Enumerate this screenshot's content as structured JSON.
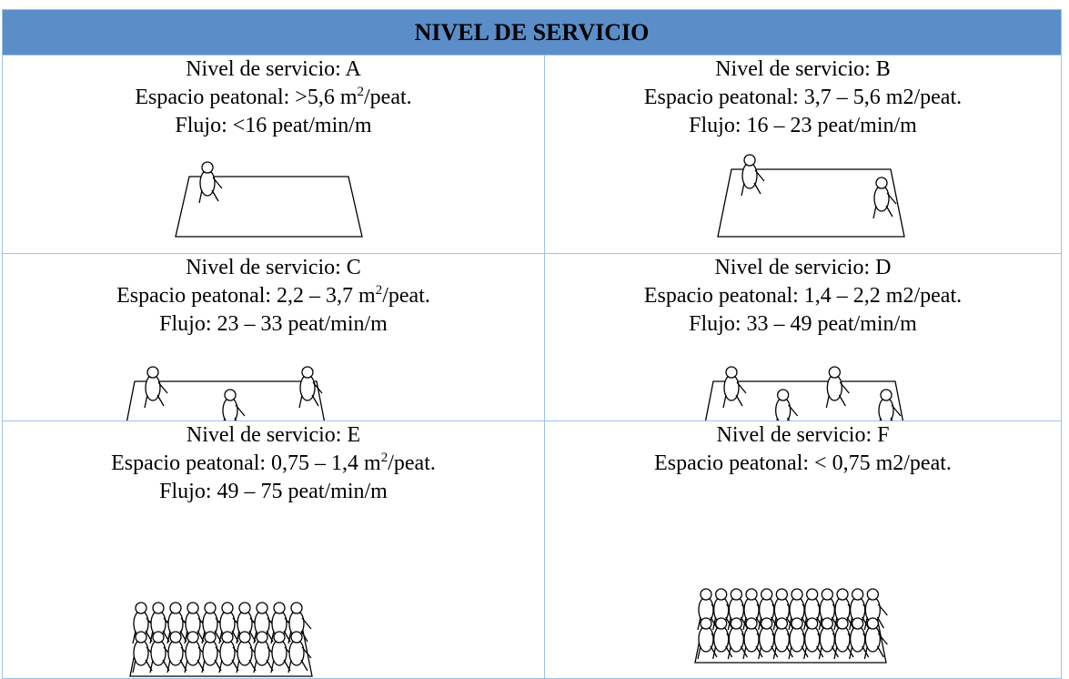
{
  "header": {
    "title": "NIVEL DE SERVICIO"
  },
  "table": {
    "rows": [
      [
        {
          "lines": [
            [
              "Nivel de servicio: A"
            ],
            [
              "Espacio peatonal: >5,6 m",
              "2",
              "/peat."
            ],
            [
              "Flujo: <16 peat/min/m"
            ]
          ]
        },
        {
          "lines": [
            [
              "Nivel de servicio: B"
            ],
            [
              "Espacio peatonal: 3,7 – 5,6 m2/peat."
            ],
            [
              "Flujo: 16 – 23 peat/min/m"
            ]
          ]
        }
      ],
      [
        {
          "lines": [
            [
              "Nivel de servicio: C"
            ],
            [
              "Espacio peatonal: 2,2 – 3,7 m",
              "2",
              "/peat."
            ],
            [
              "Flujo: 23 – 33 peat/min/m"
            ]
          ]
        },
        {
          "lines": [
            [
              "Nivel de servicio: D"
            ],
            [
              "Espacio peatonal: 1,4 – 2,2 m2/peat."
            ],
            [
              "Flujo: 33 – 49 peat/min/m"
            ]
          ]
        }
      ],
      [
        {
          "lines": [
            [
              "Nivel de servicio: E"
            ],
            [
              "Espacio peatonal: 0,75 – 1,4 m",
              "2",
              "/peat."
            ],
            [
              "Flujo: 49 – 75 peat/min/m"
            ]
          ]
        },
        {
          "lines": [
            [
              "Nivel de servicio: F"
            ],
            [
              "Espacio peatonal: < 0,75 m2/peat."
            ]
          ]
        }
      ]
    ]
  }
}
